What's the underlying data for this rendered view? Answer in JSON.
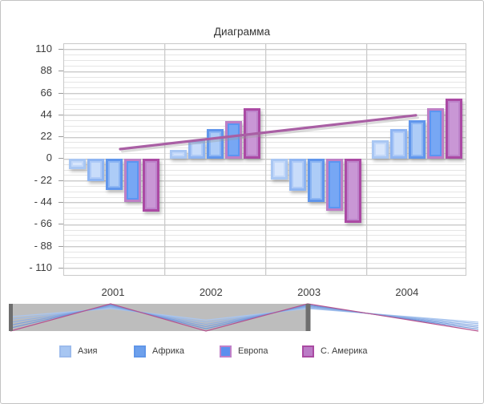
{
  "window": {
    "background": "#ffffff",
    "border_color": "#c3c3c3"
  },
  "chart_data": {
    "type": "bar",
    "title": "Диаграмма",
    "categories": [
      "2001",
      "2002",
      "2003",
      "2004"
    ],
    "y_axis": {
      "min": -110,
      "max": 110,
      "major_step": 22,
      "minor_step": 5.5,
      "tick_values": [
        110,
        88,
        66,
        44,
        22,
        0,
        -22,
        -44,
        -66,
        -88,
        -110
      ],
      "tick_labels": [
        "110",
        "88",
        "66",
        "44",
        "22",
        "0",
        "- 22",
        "- 44",
        "- 66",
        "- 88",
        "- 110"
      ]
    },
    "grid": {
      "major_color": "#cbcbcb",
      "minor_color": "#e5e5e5",
      "border_color": "#c9c9c9"
    },
    "text_color": "#3d3d3d",
    "series": [
      {
        "legend_label": "Азия",
        "in_legend": true,
        "border": "#a9c7f3",
        "fill": "#c3d8f9",
        "fill_light": "#d8e6fc",
        "values": [
          -10,
          9,
          -21,
          19
        ]
      },
      {
        "legend_label": "",
        "in_legend": false,
        "border": "#8fb5f2",
        "fill": "#aecaf7",
        "fill_light": "#c8dcfa",
        "values": [
          -22,
          19,
          -32,
          30
        ]
      },
      {
        "legend_label": "Африка",
        "in_legend": true,
        "border": "#6096ec",
        "fill": "#8cb5f3",
        "fill_light": "#adccf7",
        "values": [
          -31,
          30,
          -43,
          39
        ]
      },
      {
        "legend_label": "Европа",
        "in_legend": true,
        "border": "#bd7fc6",
        "fill": "#5b95f2",
        "fill_light": "#77a7f4",
        "values": [
          -43,
          38,
          -52,
          51
        ]
      },
      {
        "legend_label": "С. Америка",
        "in_legend": true,
        "border": "#ab4aa4",
        "fill": "#bd84cb",
        "fill_light": "#c997d5",
        "values": [
          -53,
          51,
          -64,
          61
        ]
      }
    ],
    "trend_line": {
      "color": "#a95fa4",
      "start_value": 10,
      "end_value": 44
    },
    "legend": [
      {
        "label": "Азия",
        "fill": "#a7c6f2",
        "border": "#9cbbec"
      },
      {
        "label": "Африка",
        "fill": "#6da0ec",
        "border": "#6096e8"
      },
      {
        "label": "Европа",
        "fill": "#5b8fee",
        "border": "#c080c8"
      },
      {
        "label": "С. Америка",
        "fill": "#bb7cc6",
        "border": "#aa4aa2"
      }
    ]
  },
  "navigator": {
    "track_color": "#bdbdbd",
    "handle_color": "#6e6e6e",
    "line_colors": [
      "#aac6ef",
      "#9cbbea",
      "#8eafe5",
      "#80a3df",
      "#7297d9",
      "#b5538f"
    ],
    "amplitudes": [
      0.15,
      0.3,
      0.48,
      0.65,
      0.82,
      1.0
    ]
  }
}
